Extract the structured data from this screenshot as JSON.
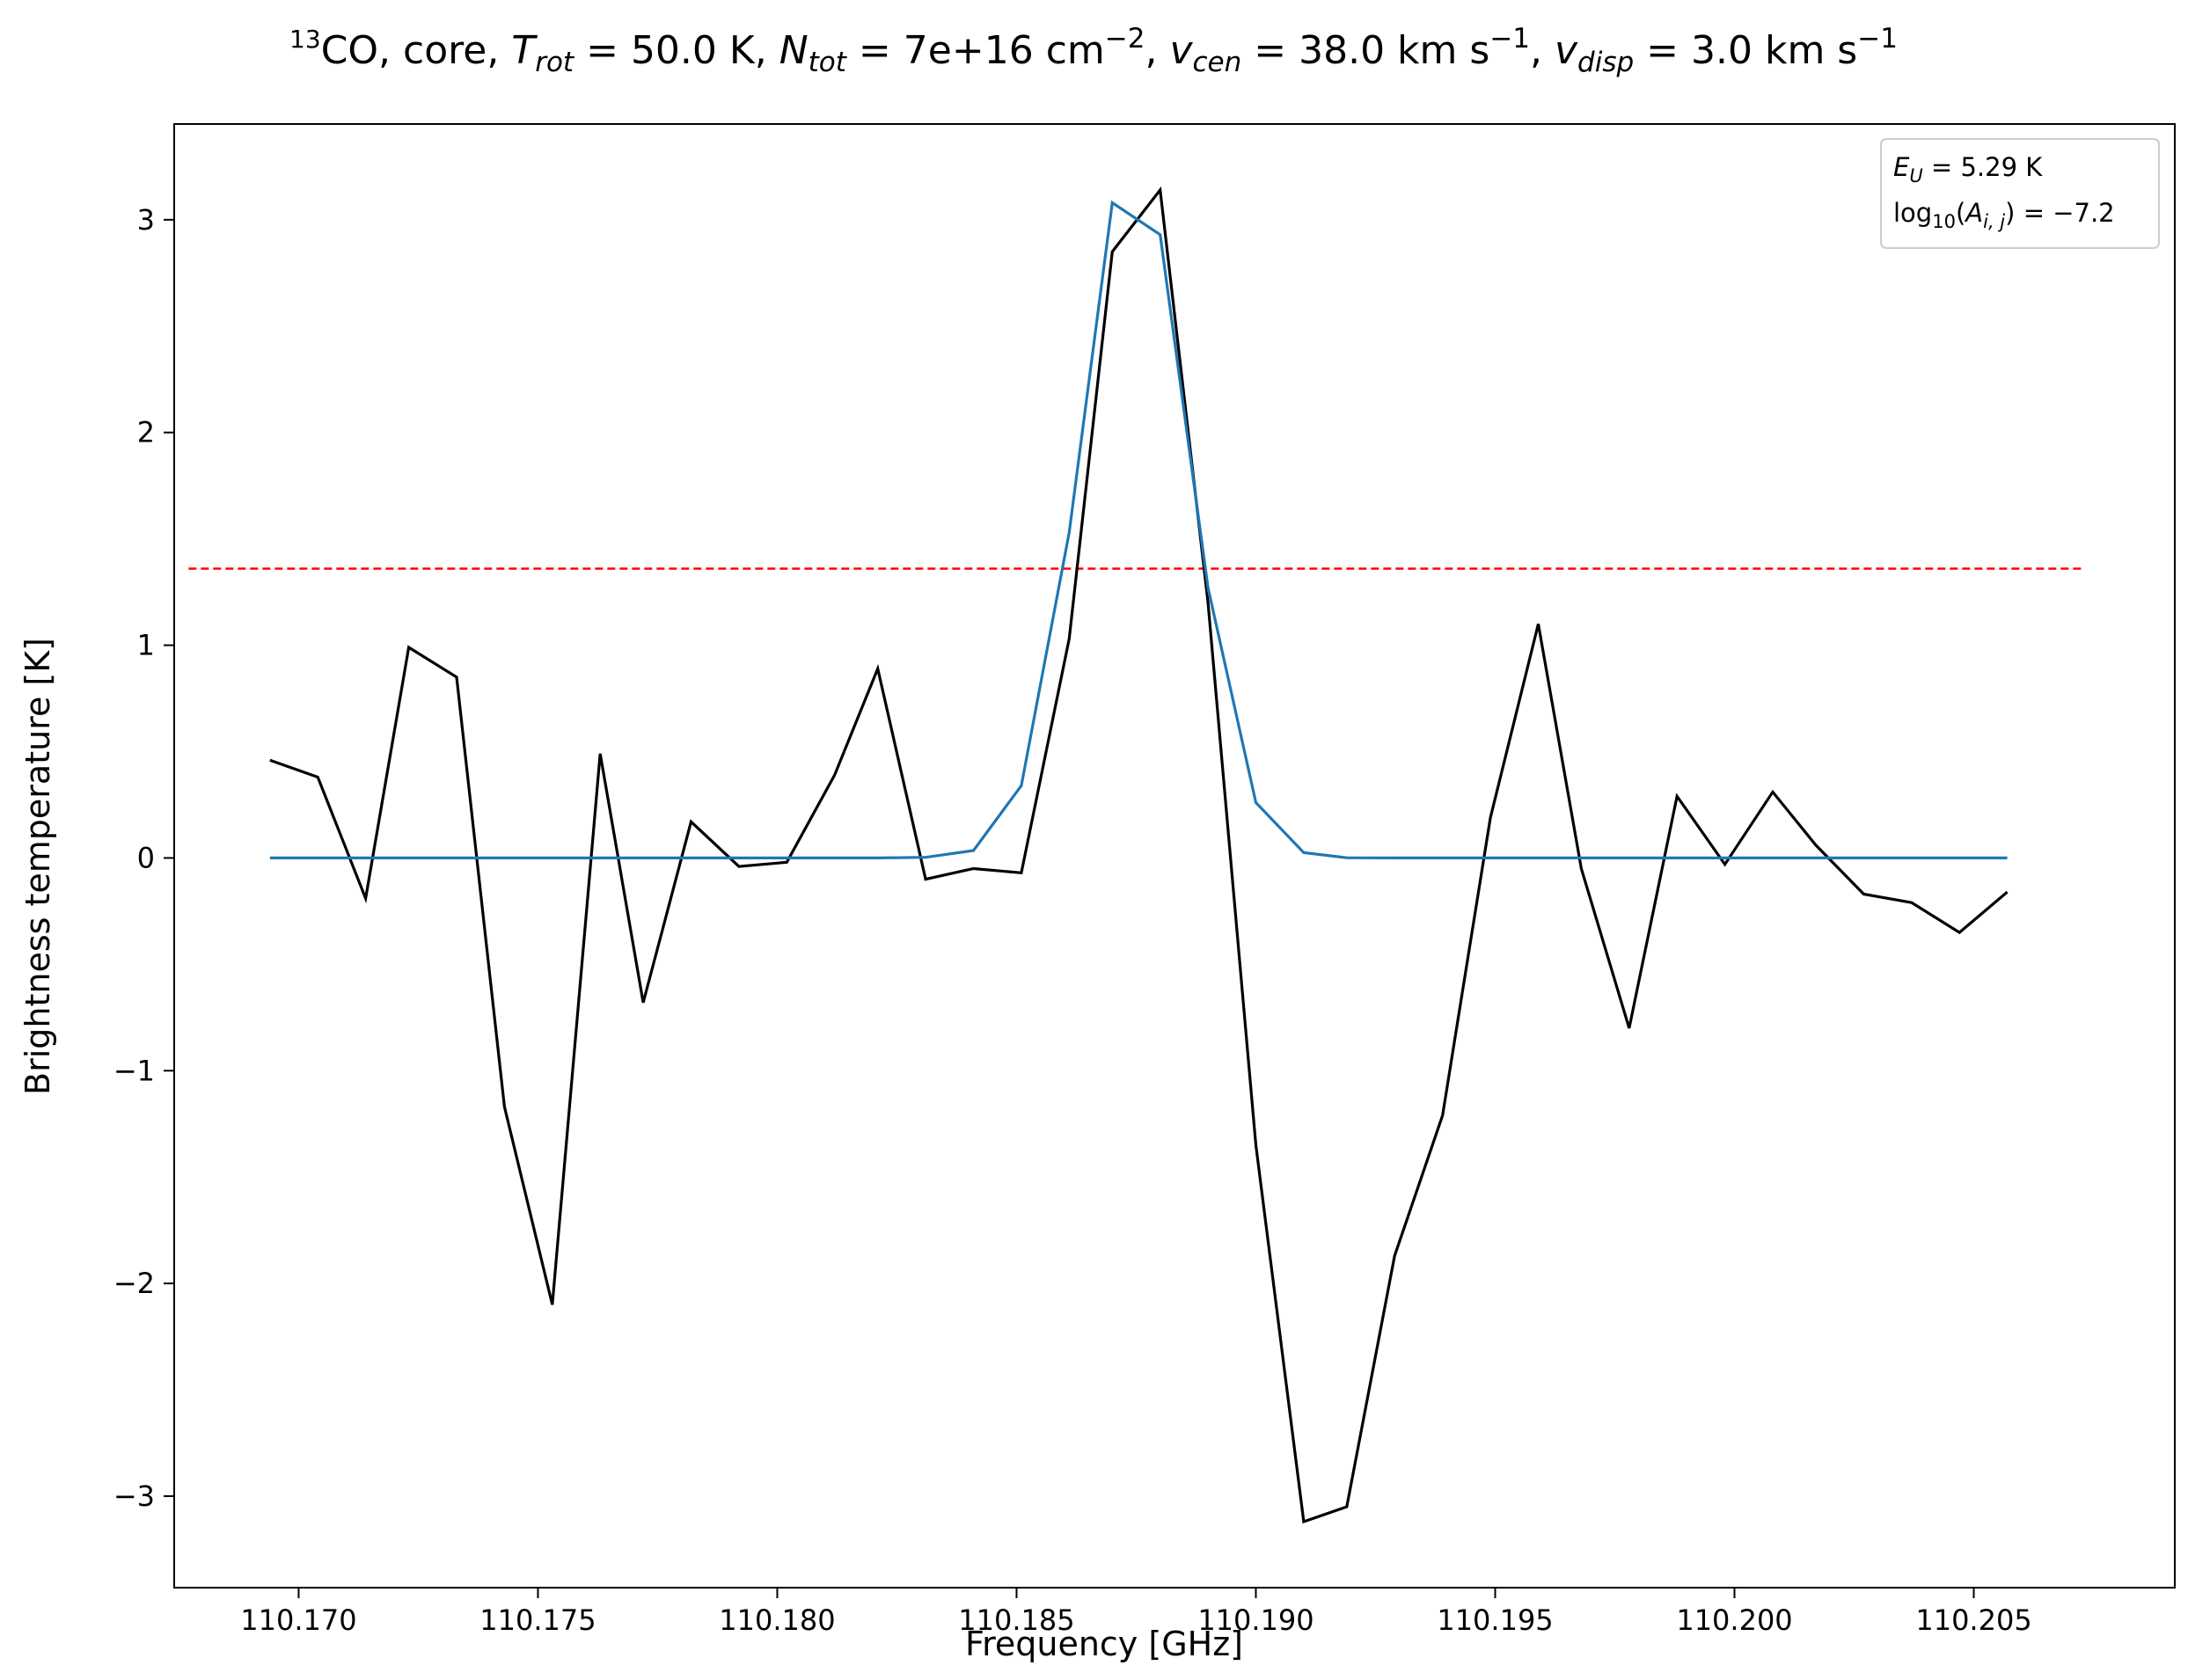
{
  "chart_data": {
    "type": "line",
    "title": {
      "species_sup": "13",
      "species": "CO",
      "region": "core",
      "trot_value": "50.0 K",
      "ntot_value": "7e+16 cm",
      "ntot_exp": "−2",
      "vcen_value": "38.0 km s",
      "vcen_exp": "−1",
      "vdisp_value": "3.0 km s",
      "vdisp_exp": "−1"
    },
    "xlabel": "Frequency [GHz]",
    "ylabel": "Brightness temperature [K]",
    "xlim": [
      110.1674,
      110.2092
    ],
    "ylim": [
      -3.43,
      3.45
    ],
    "xticks": [
      110.17,
      110.175,
      110.18,
      110.185,
      110.19,
      110.195,
      110.2,
      110.205
    ],
    "xtick_labels": [
      "110.170",
      "110.175",
      "110.180",
      "110.185",
      "110.190",
      "110.195",
      "110.200",
      "110.205"
    ],
    "yticks": [
      -3,
      -2,
      -1,
      0,
      1,
      2,
      3
    ],
    "ytick_labels": [
      "−3",
      "−2",
      "−1",
      "0",
      "1",
      "2",
      "3"
    ],
    "grid": false,
    "threshold": {
      "y": 1.36,
      "x_range": [
        110.1677,
        110.2073
      ],
      "color": "#ff0000",
      "style": "dashed"
    },
    "legend": {
      "location": "top-right",
      "eu_value": "5.29 K",
      "log_value": "−7.2"
    },
    "x": [
      110.1694,
      110.1704,
      110.1714,
      110.1723,
      110.1733,
      110.1743,
      110.1753,
      110.1763,
      110.1772,
      110.1782,
      110.1792,
      110.1802,
      110.1812,
      110.1821,
      110.1831,
      110.1841,
      110.1851,
      110.1861,
      110.187,
      110.188,
      110.189,
      110.19,
      110.191,
      110.1919,
      110.1929,
      110.1939,
      110.1949,
      110.1959,
      110.1968,
      110.1978,
      110.1988,
      110.1998,
      110.2008,
      110.2017,
      110.2027,
      110.2037,
      110.2047,
      110.2057
    ],
    "series": [
      {
        "color": "#000000",
        "values": [
          0.46,
          0.38,
          -0.19,
          0.99,
          0.85,
          -1.17,
          -2.1,
          0.49,
          -0.68,
          0.17,
          -0.04,
          -0.02,
          0.39,
          0.89,
          -0.1,
          -0.05,
          -0.07,
          1.03,
          2.85,
          3.14,
          1.2,
          -1.35,
          -3.12,
          -3.05,
          -1.87,
          -1.21,
          0.19,
          1.1,
          -0.05,
          -0.8,
          0.29,
          -0.03,
          0.31,
          0.06,
          -0.17,
          -0.21,
          -0.35,
          -0.16
        ]
      },
      {
        "color": "#1f77b4",
        "values": [
          0,
          0,
          0,
          0,
          0,
          0,
          0,
          0,
          0,
          0,
          0,
          0,
          0,
          0,
          0.003,
          0.035,
          0.34,
          1.53,
          3.08,
          2.93,
          1.27,
          0.26,
          0.025,
          0.001,
          0,
          0,
          0,
          0,
          0,
          0,
          0,
          0,
          0,
          0,
          0,
          0,
          0,
          0
        ]
      }
    ]
  }
}
